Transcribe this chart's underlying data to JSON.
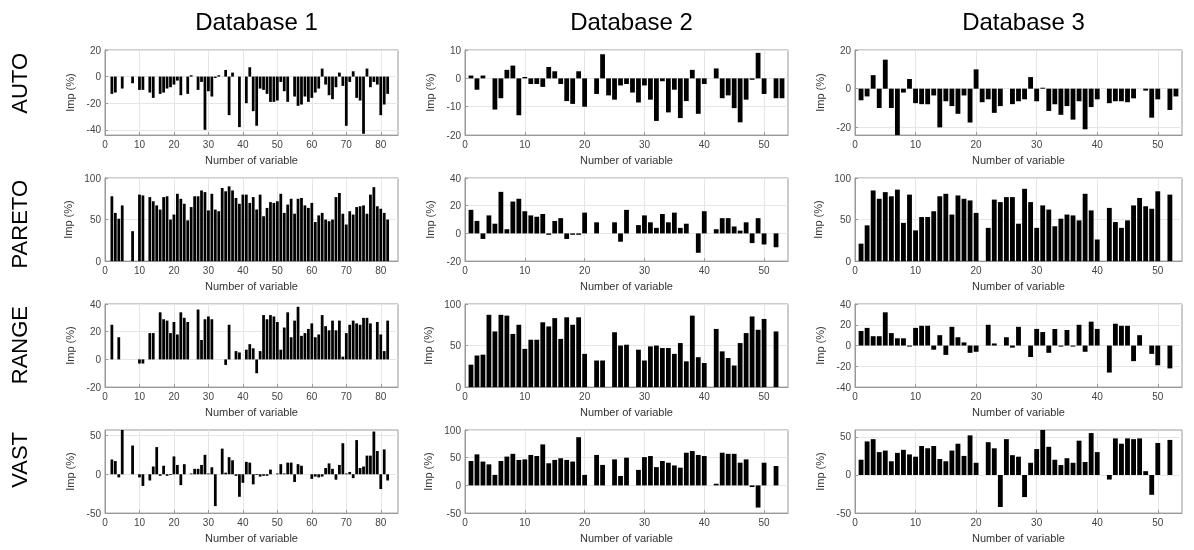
{
  "chart_data": [
    {
      "type": "bar",
      "title": "Database 1",
      "annotations": [
        "AUTO"
      ],
      "xlabel": "Number of variable",
      "ylabel": "Imp (%)",
      "color": "#000000",
      "grid": true,
      "xlim": [
        0,
        85
      ],
      "xticks": [
        0,
        10,
        20,
        30,
        40,
        50,
        60,
        70,
        80
      ],
      "ylim": [
        -44,
        20
      ],
      "yticks": [
        -40,
        -20,
        0,
        20
      ],
      "x": [
        1,
        2,
        3,
        4,
        5,
        6,
        7,
        8,
        9,
        10,
        11,
        12,
        13,
        14,
        15,
        16,
        17,
        18,
        19,
        20,
        21,
        22,
        23,
        24,
        25,
        26,
        27,
        28,
        29,
        30,
        31,
        32,
        33,
        34,
        35,
        36,
        37,
        38,
        39,
        40,
        41,
        42,
        43,
        44,
        45,
        46,
        47,
        48,
        49,
        50,
        51,
        52,
        53,
        54,
        55,
        56,
        57,
        58,
        59,
        60,
        61,
        62,
        63,
        64,
        65,
        66,
        67,
        68,
        69,
        70,
        71,
        72,
        73,
        74,
        75,
        76,
        77,
        78,
        79,
        80,
        81,
        82
      ],
      "values": [
        0,
        -13,
        -12,
        0,
        -9,
        0,
        0,
        -5,
        0,
        -10,
        -10,
        0,
        -12,
        -16,
        0,
        -13,
        -12,
        -9,
        -8,
        -6,
        -3,
        -14,
        0,
        -13,
        1,
        0,
        -10,
        -4,
        -40,
        -11,
        -15,
        -1,
        1,
        0,
        5,
        -29,
        3,
        0,
        -38,
        0,
        -20,
        7,
        -26,
        -37,
        -9,
        -10,
        -13,
        -19,
        -19,
        -18,
        -4,
        -11,
        -19,
        0,
        -15,
        -22,
        -21,
        -15,
        -19,
        -16,
        -12,
        -9,
        6,
        -6,
        -14,
        -17,
        -8,
        3,
        -7,
        -37,
        -4,
        4,
        -16,
        -18,
        -43,
        6,
        -8,
        -4,
        -6,
        -29,
        -21,
        -13
      ]
    },
    {
      "type": "bar",
      "title": "Database 2",
      "xlabel": "Number of variable",
      "ylabel": "Imp (%)",
      "color": "#000000",
      "grid": true,
      "xlim": [
        0,
        54
      ],
      "xticks": [
        0,
        10,
        20,
        30,
        40,
        50
      ],
      "ylim": [
        -20,
        10
      ],
      "yticks": [
        -20,
        -10,
        0,
        10
      ],
      "x": [
        1,
        2,
        3,
        4,
        5,
        6,
        7,
        8,
        9,
        10,
        11,
        12,
        13,
        14,
        15,
        16,
        17,
        18,
        19,
        20,
        21,
        22,
        23,
        24,
        25,
        26,
        27,
        28,
        29,
        30,
        31,
        32,
        33,
        34,
        35,
        36,
        37,
        38,
        39,
        40,
        41,
        42,
        43,
        44,
        45,
        46,
        47,
        48,
        49,
        50,
        51,
        52,
        53
      ],
      "values": [
        1,
        -4,
        1,
        0,
        -11,
        -7,
        3,
        4.5,
        -13,
        0.5,
        -2,
        -2,
        -3,
        4,
        2.5,
        -2,
        -8,
        -9,
        2.5,
        -10,
        0,
        -5.5,
        8.5,
        -6,
        -7.5,
        -2.5,
        -2,
        -5,
        -8.5,
        -2.5,
        -7.5,
        -15,
        -1,
        -12,
        -4,
        -14,
        -8,
        3,
        -12.5,
        -2,
        0,
        3.5,
        -7,
        -6,
        -10.5,
        -15.5,
        -7.5,
        -0.5,
        9,
        -5.5,
        0,
        -7,
        -7
      ]
    },
    {
      "type": "bar",
      "title": "Database 3",
      "xlabel": "Number of variable",
      "ylabel": "Imp (%)",
      "color": "#000000",
      "grid": true,
      "xlim": [
        0,
        54
      ],
      "xticks": [
        0,
        10,
        20,
        30,
        40,
        50
      ],
      "ylim": [
        -24,
        20
      ],
      "yticks": [
        -20,
        0,
        20
      ],
      "x": [
        1,
        2,
        3,
        4,
        5,
        6,
        7,
        8,
        9,
        10,
        11,
        12,
        13,
        14,
        15,
        16,
        17,
        18,
        19,
        20,
        21,
        22,
        23,
        24,
        25,
        26,
        27,
        28,
        29,
        30,
        31,
        32,
        33,
        34,
        35,
        36,
        37,
        38,
        39,
        40,
        41,
        42,
        43,
        44,
        45,
        46,
        47,
        48,
        49,
        50,
        51,
        52,
        53
      ],
      "values": [
        -6,
        -4,
        7,
        -10,
        15,
        -10,
        -24,
        -2,
        5,
        -7.5,
        -8,
        -8,
        -3.5,
        -20,
        -6.5,
        -9,
        -13,
        -3.5,
        -17.5,
        10,
        -7,
        -5.5,
        -12.5,
        -9,
        0,
        -8,
        -6.5,
        -5.5,
        6,
        -6.5,
        0.5,
        -11.5,
        -8,
        -13.5,
        -9,
        -16,
        -6.5,
        -21,
        -9.5,
        -5.5,
        0,
        -7.5,
        -6.5,
        -6.5,
        -7,
        -5,
        0,
        -1,
        -15,
        -5.5,
        0,
        -11,
        -4
      ]
    },
    {
      "type": "bar",
      "annotations": [
        "PARETO"
      ],
      "xlabel": "Number of variable",
      "ylabel": "Imp (%)",
      "color": "#000000",
      "grid": true,
      "xlim": [
        0,
        85
      ],
      "xticks": [
        0,
        10,
        20,
        30,
        40,
        50,
        60,
        70,
        80
      ],
      "ylim": [
        0,
        100
      ],
      "yticks": [
        0,
        50,
        100
      ],
      "x": [
        1,
        2,
        3,
        4,
        5,
        6,
        7,
        8,
        9,
        10,
        11,
        12,
        13,
        14,
        15,
        16,
        17,
        18,
        19,
        20,
        21,
        22,
        23,
        24,
        25,
        26,
        27,
        28,
        29,
        30,
        31,
        32,
        33,
        34,
        35,
        36,
        37,
        38,
        39,
        40,
        41,
        42,
        43,
        44,
        45,
        46,
        47,
        48,
        49,
        50,
        51,
        52,
        53,
        54,
        55,
        56,
        57,
        58,
        59,
        60,
        61,
        62,
        63,
        64,
        65,
        66,
        67,
        68,
        69,
        70,
        71,
        72,
        73,
        74,
        75,
        76,
        77,
        78,
        79,
        80,
        81,
        82
      ],
      "values": [
        0,
        78,
        58,
        51,
        67,
        0,
        0,
        36,
        0,
        80,
        79,
        0,
        77,
        72,
        67,
        62,
        77,
        78,
        50,
        56,
        81,
        75,
        69,
        49,
        65,
        78,
        78,
        85,
        83,
        61,
        81,
        62,
        60,
        88,
        84,
        90,
        85,
        76,
        69,
        80,
        80,
        70,
        77,
        62,
        80,
        54,
        64,
        71,
        70,
        72,
        81,
        58,
        68,
        75,
        57,
        75,
        76,
        67,
        64,
        70,
        47,
        55,
        58,
        50,
        48,
        50,
        77,
        82,
        57,
        44,
        60,
        56,
        65,
        66,
        67,
        57,
        80,
        89,
        66,
        63,
        58,
        50
      ]
    },
    {
      "type": "bar",
      "xlabel": "Number of variable",
      "ylabel": "Imp (%)",
      "color": "#000000",
      "grid": true,
      "xlim": [
        0,
        54
      ],
      "xticks": [
        0,
        10,
        20,
        30,
        40,
        50
      ],
      "ylim": [
        -20,
        40
      ],
      "yticks": [
        -20,
        0,
        20,
        40
      ],
      "x": [
        1,
        2,
        3,
        4,
        5,
        6,
        7,
        8,
        9,
        10,
        11,
        12,
        13,
        14,
        15,
        16,
        17,
        18,
        19,
        20,
        21,
        22,
        23,
        24,
        25,
        26,
        27,
        28,
        29,
        30,
        31,
        32,
        33,
        34,
        35,
        36,
        37,
        38,
        39,
        40,
        41,
        42,
        43,
        44,
        45,
        46,
        47,
        48,
        49,
        50,
        51,
        52,
        53
      ],
      "values": [
        17,
        9,
        -4,
        13,
        7,
        30,
        3,
        23,
        25,
        16,
        13,
        12,
        14,
        -1,
        9,
        11,
        -4,
        -1,
        -1,
        15,
        0,
        8,
        0,
        0,
        8,
        -6,
        17,
        0,
        6,
        13,
        8,
        4,
        14,
        8,
        15,
        4,
        7,
        0,
        -14,
        16,
        0,
        3,
        11,
        11,
        5,
        2,
        8,
        -7,
        11,
        -8,
        0,
        -10,
        0
      ]
    },
    {
      "type": "bar",
      "xlabel": "Number of variable",
      "ylabel": "Imp (%)",
      "color": "#000000",
      "grid": true,
      "xlim": [
        0,
        54
      ],
      "xticks": [
        0,
        10,
        20,
        30,
        40,
        50
      ],
      "ylim": [
        0,
        100
      ],
      "yticks": [
        0,
        50,
        100
      ],
      "x": [
        1,
        2,
        3,
        4,
        5,
        6,
        7,
        8,
        9,
        10,
        11,
        12,
        13,
        14,
        15,
        16,
        17,
        18,
        19,
        20,
        21,
        22,
        23,
        24,
        25,
        26,
        27,
        28,
        29,
        30,
        31,
        32,
        33,
        34,
        35,
        36,
        37,
        38,
        39,
        40,
        41,
        42,
        43,
        44,
        45,
        46,
        47,
        48,
        49,
        50,
        51,
        52,
        53
      ],
      "values": [
        21,
        43,
        85,
        75,
        83,
        78,
        86,
        46,
        80,
        37,
        53,
        53,
        60,
        78,
        81,
        56,
        79,
        75,
        73,
        58,
        0,
        40,
        74,
        71,
        77,
        77,
        45,
        87,
        71,
        40,
        67,
        62,
        42,
        51,
        56,
        55,
        49,
        81,
        61,
        26,
        0,
        64,
        47,
        40,
        49,
        67,
        76,
        66,
        63,
        84,
        0,
        80,
        0
      ]
    },
    {
      "type": "bar",
      "annotations": [
        "RANGE"
      ],
      "xlabel": "Number of variable",
      "ylabel": "Imp (%)",
      "color": "#000000",
      "grid": true,
      "xlim": [
        0,
        85
      ],
      "xticks": [
        0,
        10,
        20,
        30,
        40,
        50,
        60,
        70,
        80
      ],
      "ylim": [
        -20,
        40
      ],
      "yticks": [
        -20,
        0,
        20,
        40
      ],
      "x": [
        1,
        2,
        3,
        4,
        5,
        6,
        7,
        8,
        9,
        10,
        11,
        12,
        13,
        14,
        15,
        16,
        17,
        18,
        19,
        20,
        21,
        22,
        23,
        24,
        25,
        26,
        27,
        28,
        29,
        30,
        31,
        32,
        33,
        34,
        35,
        36,
        37,
        38,
        39,
        40,
        41,
        42,
        43,
        44,
        45,
        46,
        47,
        48,
        49,
        50,
        51,
        52,
        53,
        54,
        55,
        56,
        57,
        58,
        59,
        60,
        61,
        62,
        63,
        64,
        65,
        66,
        67,
        68,
        69,
        70,
        71,
        72,
        73,
        74,
        75,
        76,
        77,
        78,
        79,
        80,
        81,
        82
      ],
      "values": [
        0,
        25,
        0,
        16,
        0,
        0,
        0,
        0,
        0,
        -3,
        -3,
        0,
        19,
        19,
        0,
        34,
        29,
        28,
        19,
        27,
        18,
        34,
        30,
        27,
        0,
        0,
        36,
        14,
        29,
        31,
        29,
        0,
        0,
        0,
        -4,
        25,
        0,
        6,
        5,
        0,
        7,
        11,
        8,
        -10,
        6,
        32,
        29,
        32,
        31,
        27,
        7,
        23,
        34,
        16,
        28,
        38,
        17,
        19,
        22,
        26,
        16,
        18,
        32,
        24,
        21,
        28,
        21,
        28,
        2,
        19,
        25,
        28,
        26,
        25,
        30,
        30,
        26,
        0,
        27,
        18,
        6,
        28
      ]
    },
    {
      "type": "bar",
      "xlabel": "Number of variable",
      "ylabel": "Imp (%)",
      "color": "#000000",
      "grid": true,
      "xlim": [
        0,
        54
      ],
      "xticks": [
        0,
        10,
        20,
        30,
        40,
        50
      ],
      "ylim": [
        0,
        100
      ],
      "yticks": [
        0,
        50,
        100
      ],
      "x": [
        1,
        2,
        3,
        4,
        5,
        6,
        7,
        8,
        9,
        10,
        11,
        12,
        13,
        14,
        15,
        16,
        17,
        18,
        19,
        20,
        21,
        22,
        23,
        24,
        25,
        26,
        27,
        28,
        29,
        30,
        31,
        32,
        33,
        34,
        35,
        36,
        37,
        38,
        39,
        40,
        41,
        42,
        43,
        44,
        45,
        46,
        47,
        48,
        49,
        50,
        51,
        52,
        53
      ],
      "values": [
        27,
        38,
        39,
        87,
        67,
        87,
        86,
        64,
        75,
        46,
        57,
        57,
        78,
        73,
        83,
        58,
        84,
        75,
        84,
        40,
        0,
        32,
        32,
        0,
        66,
        50,
        51,
        0,
        45,
        32,
        49,
        50,
        47,
        47,
        40,
        53,
        31,
        86,
        36,
        29,
        0,
        70,
        43,
        35,
        26,
        53,
        65,
        85,
        69,
        82,
        0,
        67,
        0
      ]
    },
    {
      "type": "bar",
      "xlabel": "Number of variable",
      "ylabel": "Imp (%)",
      "color": "#000000",
      "grid": true,
      "xlim": [
        0,
        54
      ],
      "xticks": [
        0,
        10,
        20,
        30,
        40,
        50
      ],
      "ylim": [
        -40,
        40
      ],
      "yticks": [
        -40,
        -20,
        0,
        20,
        40
      ],
      "x": [
        1,
        2,
        3,
        4,
        5,
        6,
        7,
        8,
        9,
        10,
        11,
        12,
        13,
        14,
        15,
        16,
        17,
        18,
        19,
        20,
        21,
        22,
        23,
        24,
        25,
        26,
        27,
        28,
        29,
        30,
        31,
        32,
        33,
        34,
        35,
        36,
        37,
        38,
        39,
        40,
        41,
        42,
        43,
        44,
        45,
        46,
        47,
        48,
        49,
        50,
        51,
        52,
        53
      ],
      "values": [
        14,
        17,
        9,
        9,
        32,
        12,
        7,
        7,
        -1,
        17,
        19,
        19,
        -4,
        10,
        -9,
        18,
        8,
        3,
        -7,
        -6,
        0,
        20,
        2,
        0,
        8,
        -2,
        18,
        0,
        -11,
        16,
        13,
        -7,
        16,
        -1,
        15,
        -1,
        20,
        -6,
        23,
        16,
        0,
        -26,
        21,
        19,
        19,
        -15,
        10,
        0,
        -8,
        -19,
        0,
        -22,
        0
      ]
    },
    {
      "type": "bar",
      "annotations": [
        "VAST"
      ],
      "xlabel": "Number of variable",
      "ylabel": "Imp (%)",
      "color": "#000000",
      "grid": true,
      "xlim": [
        0,
        85
      ],
      "xticks": [
        0,
        10,
        20,
        30,
        40,
        50,
        60,
        70,
        80
      ],
      "ylim": [
        -50,
        57
      ],
      "yticks": [
        -50,
        0,
        50
      ],
      "x": [
        1,
        2,
        3,
        4,
        5,
        6,
        7,
        8,
        9,
        10,
        11,
        12,
        13,
        14,
        15,
        16,
        17,
        18,
        19,
        20,
        21,
        22,
        23,
        24,
        25,
        26,
        27,
        28,
        29,
        30,
        31,
        32,
        33,
        34,
        35,
        36,
        37,
        38,
        39,
        40,
        41,
        42,
        43,
        44,
        45,
        46,
        47,
        48,
        49,
        50,
        51,
        52,
        53,
        54,
        55,
        56,
        57,
        58,
        59,
        60,
        61,
        62,
        63,
        64,
        65,
        66,
        67,
        68,
        69,
        70,
        71,
        72,
        73,
        74,
        75,
        76,
        77,
        78,
        79,
        80,
        81,
        82
      ],
      "values": [
        0,
        19,
        17,
        -4,
        57,
        0,
        0,
        37,
        0,
        -4,
        -15,
        0,
        -8,
        10,
        35,
        -2,
        11,
        -2,
        -1,
        23,
        12,
        -14,
        13,
        0,
        1,
        7,
        7,
        12,
        25,
        1,
        9,
        -41,
        0,
        33,
        2,
        22,
        18,
        -2,
        -29,
        -11,
        16,
        15,
        -13,
        -1,
        -3,
        -2,
        -2,
        6,
        0,
        1,
        13,
        1,
        15,
        15,
        -10,
        13,
        11,
        0,
        0,
        -6,
        -3,
        -4,
        -3,
        8,
        14,
        7,
        -7,
        12,
        40,
        1,
        3,
        -5,
        44,
        8,
        10,
        24,
        24,
        55,
        30,
        -19,
        32,
        -8
      ]
    },
    {
      "type": "bar",
      "xlabel": "Number of variable",
      "ylabel": "Imp (%)",
      "color": "#000000",
      "grid": true,
      "xlim": [
        0,
        54
      ],
      "xticks": [
        0,
        10,
        20,
        30,
        40,
        50
      ],
      "ylim": [
        -50,
        100
      ],
      "yticks": [
        -50,
        0,
        50,
        100
      ],
      "x": [
        1,
        2,
        3,
        4,
        5,
        6,
        7,
        8,
        9,
        10,
        11,
        12,
        13,
        14,
        15,
        16,
        17,
        18,
        19,
        20,
        21,
        22,
        23,
        24,
        25,
        26,
        27,
        28,
        29,
        30,
        31,
        32,
        33,
        34,
        35,
        36,
        37,
        38,
        39,
        40,
        41,
        42,
        43,
        44,
        45,
        46,
        47,
        48,
        49,
        50,
        51,
        52,
        53
      ],
      "values": [
        44,
        56,
        43,
        38,
        19,
        44,
        52,
        57,
        46,
        47,
        55,
        53,
        74,
        40,
        46,
        49,
        46,
        43,
        87,
        19,
        0,
        55,
        37,
        0,
        47,
        17,
        50,
        0,
        28,
        51,
        53,
        33,
        44,
        41,
        36,
        32,
        59,
        62,
        55,
        53,
        0,
        3,
        59,
        57,
        57,
        41,
        47,
        -3,
        -40,
        41,
        0,
        35,
        0
      ]
    },
    {
      "type": "bar",
      "xlabel": "Number of variable",
      "ylabel": "Imp (%)",
      "color": "#000000",
      "grid": true,
      "xlim": [
        0,
        54
      ],
      "xticks": [
        0,
        10,
        20,
        30,
        40,
        50
      ],
      "ylim": [
        -50,
        59
      ],
      "yticks": [
        -50,
        0,
        50
      ],
      "x": [
        1,
        2,
        3,
        4,
        5,
        6,
        7,
        8,
        9,
        10,
        11,
        12,
        13,
        14,
        15,
        16,
        17,
        18,
        19,
        20,
        21,
        22,
        23,
        24,
        25,
        26,
        27,
        28,
        29,
        30,
        31,
        32,
        33,
        34,
        35,
        36,
        37,
        38,
        39,
        40,
        41,
        42,
        43,
        44,
        45,
        46,
        47,
        48,
        49,
        50,
        51,
        52,
        53
      ],
      "values": [
        20,
        44,
        47,
        30,
        32,
        18,
        29,
        33,
        27,
        24,
        38,
        35,
        38,
        21,
        18,
        32,
        41,
        25,
        52,
        16,
        0,
        43,
        35,
        -42,
        47,
        26,
        24,
        -29,
        16,
        34,
        59,
        37,
        20,
        13,
        22,
        16,
        45,
        17,
        55,
        30,
        0,
        -6,
        48,
        41,
        48,
        47,
        48,
        5,
        -26,
        42,
        0,
        46,
        0
      ]
    }
  ]
}
